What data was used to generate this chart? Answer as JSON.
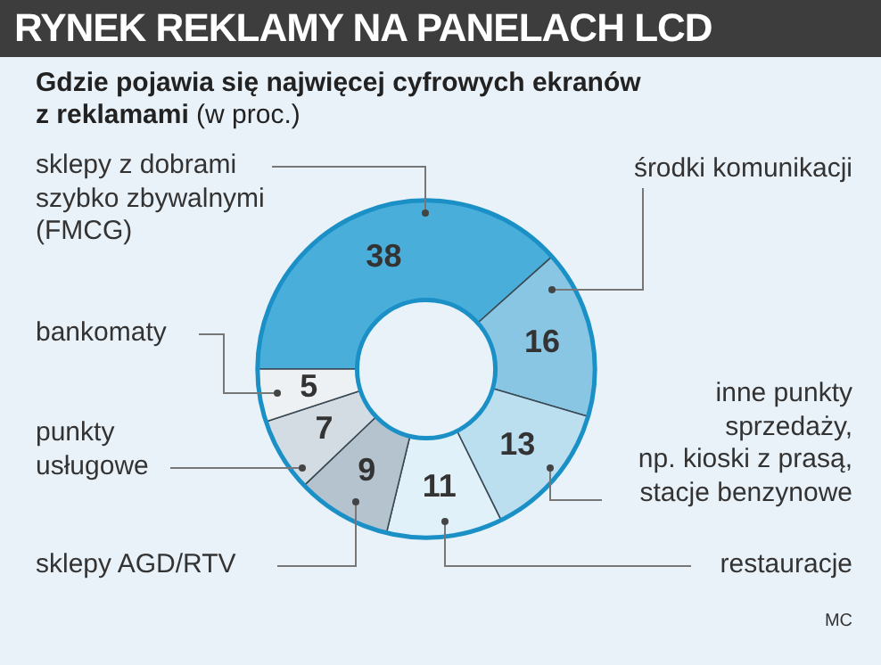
{
  "chart_data": {
    "type": "donut",
    "title": "RYNEK REKLAMY NA PANELACH LCD",
    "subtitle": "Gdzie pojawia się najwięcej cyfrowych ekranów z reklamami (w proc.)",
    "categories": [
      "sklepy z dobrami szybko zbywalnymi (FMCG)",
      "środki komunikacji",
      "inne punkty sprzedaży, np. kioski z prasą, stacje benzynowe",
      "restauracje",
      "sklepy AGD/RTV",
      "punkty usługowe",
      "bankomaty"
    ],
    "values": [
      38,
      16,
      13,
      11,
      9,
      7,
      5
    ],
    "colors": [
      "#4aaedb",
      "#88c6e4",
      "#bcdff0",
      "#e1f1fa",
      "#b4c3cd",
      "#d3dce2",
      "#edf1f4"
    ],
    "data_labels": true,
    "legend": false,
    "annotations": [
      "MC"
    ]
  }
}
